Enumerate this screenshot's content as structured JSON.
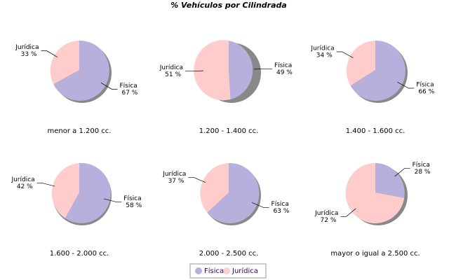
{
  "title": "% Vehículos por Cilindrada",
  "chart_data": [
    {
      "type": "pie",
      "title": "menor a 1.200 cc.",
      "categories": [
        "Física",
        "Jurídica"
      ],
      "values": [
        67,
        33
      ],
      "value_labels": [
        "67 %",
        "33 %"
      ],
      "colors": [
        "#b8b0dc",
        "#ffcccc"
      ]
    },
    {
      "type": "pie",
      "title": "1.200 - 1.400 cc.",
      "categories": [
        "Física",
        "Jurídica"
      ],
      "values": [
        49,
        51
      ],
      "value_labels": [
        "49 %",
        "51 %"
      ],
      "colors": [
        "#b8b0dc",
        "#ffcccc"
      ]
    },
    {
      "type": "pie",
      "title": "1.400 - 1.600 cc.",
      "categories": [
        "Física",
        "Jurídica"
      ],
      "values": [
        66,
        34
      ],
      "value_labels": [
        "66 %",
        "34 %"
      ],
      "colors": [
        "#b8b0dc",
        "#ffcccc"
      ]
    },
    {
      "type": "pie",
      "title": "1.600 - 2.000 cc.",
      "categories": [
        "Física",
        "Jurídica"
      ],
      "values": [
        58,
        42
      ],
      "value_labels": [
        "58 %",
        "42 %"
      ],
      "colors": [
        "#b8b0dc",
        "#ffcccc"
      ]
    },
    {
      "type": "pie",
      "title": "2.000 - 2.500 cc.",
      "categories": [
        "Física",
        "Jurídica"
      ],
      "values": [
        63,
        37
      ],
      "value_labels": [
        "63 %",
        "37 %"
      ],
      "colors": [
        "#b8b0dc",
        "#ffcccc"
      ]
    },
    {
      "type": "pie",
      "title": "mayor o igual a 2.500 cc.",
      "categories": [
        "Física",
        "Jurídica"
      ],
      "values": [
        28,
        72
      ],
      "value_labels": [
        "28 %",
        "72 %"
      ],
      "colors": [
        "#b8b0dc",
        "#ffcccc"
      ]
    }
  ]
}
